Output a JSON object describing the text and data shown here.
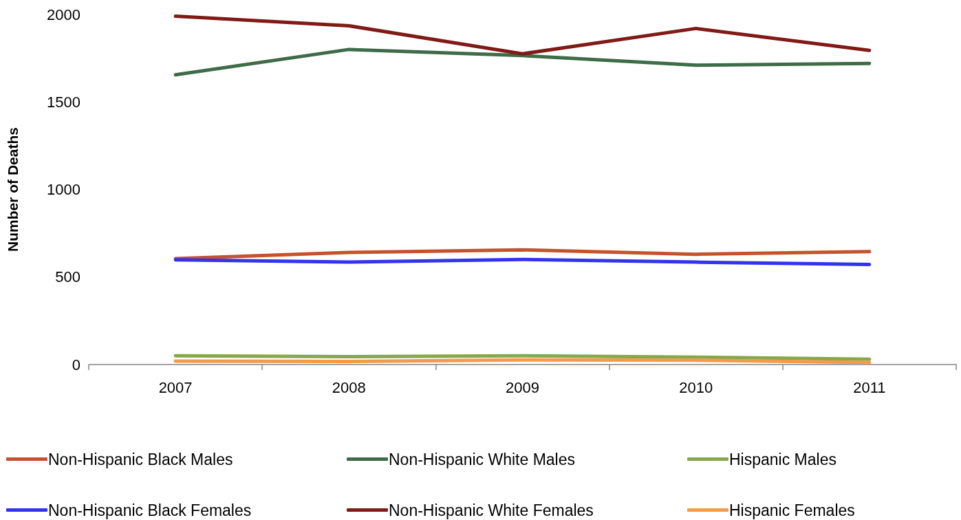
{
  "chart_data": {
    "type": "line",
    "ylabel": "Number of Deaths",
    "categories": [
      "2007",
      "2008",
      "2009",
      "2010",
      "2011"
    ],
    "series": [
      {
        "name": "Non-Hispanic Black Males",
        "color": "#c4532d",
        "values": [
          605,
          640,
          655,
          630,
          645
        ]
      },
      {
        "name": "Non-Hispanic White Males",
        "color": "#3e6b48",
        "values": [
          1655,
          1800,
          1765,
          1710,
          1720
        ]
      },
      {
        "name": "Hispanic Males",
        "color": "#86a84b",
        "values": [
          50,
          45,
          50,
          42,
          30
        ]
      },
      {
        "name": "Non-Hispanic Black Females",
        "color": "#3333ee",
        "values": [
          598,
          585,
          600,
          585,
          572
        ]
      },
      {
        "name": "Non-Hispanic White Females",
        "color": "#7f1a16",
        "values": [
          1990,
          1935,
          1775,
          1920,
          1795
        ]
      },
      {
        "name": "Hispanic Females",
        "color": "#f59a4a",
        "values": [
          20,
          18,
          27,
          25,
          12
        ]
      }
    ],
    "ylim": [
      0,
      2000
    ],
    "yticks": [
      0,
      500,
      1000,
      1500,
      2000
    ],
    "grid": false,
    "legend": "bottom",
    "marker": "none",
    "line_style": "solid"
  }
}
